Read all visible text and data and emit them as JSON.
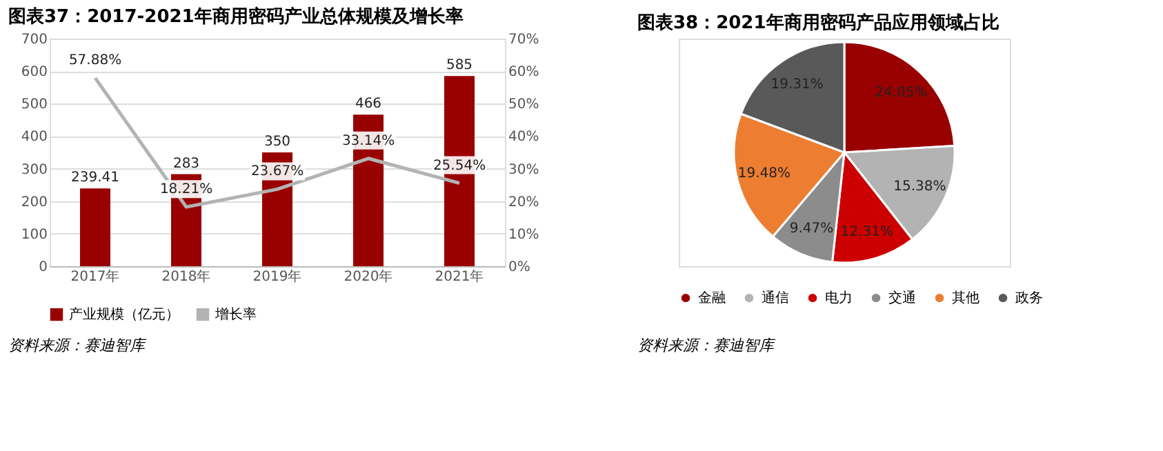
{
  "chart_data": [
    {
      "type": "bar",
      "title": "图表37：2017-2021年商用密码产业总体规模及增长率",
      "categories": [
        "2017年",
        "2018年",
        "2019年",
        "2020年",
        "2021年"
      ],
      "series": [
        {
          "name": "产业规模（亿元）",
          "type": "bar",
          "color": "#990000",
          "values": [
            239.41,
            283,
            350,
            466,
            585
          ],
          "value_labels": [
            "239.41",
            "283",
            "350",
            "466",
            "585"
          ]
        },
        {
          "name": "增长率",
          "type": "line",
          "axis": "y2",
          "color": "#b3b3b3",
          "values": [
            57.88,
            18.21,
            23.67,
            33.14,
            25.54
          ],
          "value_labels": [
            "57.88%",
            "18.21%",
            "23.67%",
            "33.14%",
            "25.54%"
          ]
        }
      ],
      "ylim": [
        0,
        700
      ],
      "yticks": [
        0,
        100,
        200,
        300,
        400,
        500,
        600,
        700
      ],
      "y2lim": [
        0,
        70
      ],
      "y2ticks": [
        {
          "value": 0,
          "label": "0%"
        },
        {
          "value": 10,
          "label": "10%"
        },
        {
          "value": 20,
          "label": "20%"
        },
        {
          "value": 30,
          "label": "30%"
        },
        {
          "value": 40,
          "label": "40%"
        },
        {
          "value": 50,
          "label": "50%"
        },
        {
          "value": 60,
          "label": "60%"
        },
        {
          "value": 70,
          "label": "70%"
        }
      ],
      "grid": "y",
      "legend": "bottom",
      "marker": "none",
      "line_style": "solid",
      "annotations": [
        "资料来源：赛迪智库"
      ]
    },
    {
      "type": "pie",
      "title": "图表38：2021年商用密码产品应用领域占比",
      "categories": [
        "金融",
        "通信",
        "电力",
        "交通",
        "其他",
        "政务"
      ],
      "values": [
        24.05,
        15.38,
        12.31,
        9.47,
        19.48,
        19.31
      ],
      "colors": [
        "#990000",
        "#b3b3b3",
        "#cc0000",
        "#8c8c8c",
        "#ed7d31",
        "#595959"
      ],
      "value_labels": [
        "24.05%",
        "15.38%",
        "12.31%",
        "9.47%",
        "19.48%",
        "19.31%"
      ],
      "legend": "bottom",
      "annotations": [
        "资料来源：赛迪智库"
      ]
    }
  ]
}
